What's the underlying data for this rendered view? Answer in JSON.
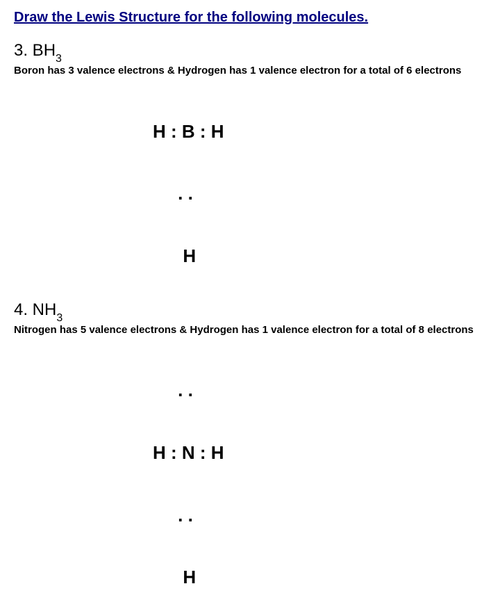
{
  "title": "Draw the Lewis Structure for the following molecules.",
  "problems": [
    {
      "num_prefix": "3. BH",
      "num_sub": "3",
      "desc": "Boron  has 3 valence electrons & Hydrogen has 1 valence electron for a total of 6 electrons",
      "lewis_rows": [
        "H : B : H",
        "     . .",
        "      H"
      ]
    },
    {
      "num_prefix": "4. NH",
      "num_sub": "3",
      "desc": "Nitrogen  has 5 valence electrons & Hydrogen has 1 valence electron for a total of 8 electrons",
      "lewis_rows": [
        "     . .",
        "H : N : H",
        "     . .",
        "      H"
      ]
    }
  ]
}
